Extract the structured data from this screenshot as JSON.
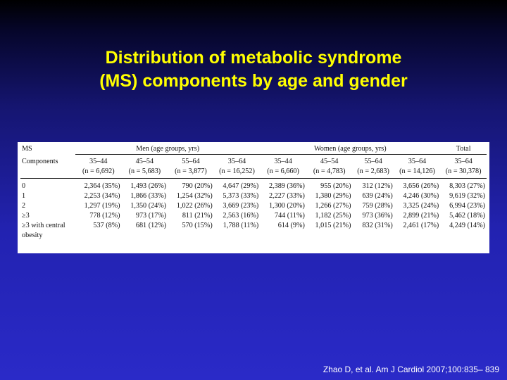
{
  "slide": {
    "title_line1": "Distribution of metabolic syndrome",
    "title_line2": "(MS) components by age and gender",
    "citation": "Zhao D, et al. Am J Cardiol 2007;100:835– 839",
    "colors": {
      "title": "#ffff00",
      "citation": "#ffffff",
      "background_top": "#000000",
      "background_bottom": "#2a2ac8"
    }
  },
  "table": {
    "header_label_line1": "MS",
    "header_label_line2": "Components",
    "groups": {
      "men": "Men (age groups, yrs)",
      "women": "Women (age groups, yrs)",
      "total": "Total"
    },
    "columns": [
      {
        "age": "35–44",
        "n": "(n = 6,692)"
      },
      {
        "age": "45–54",
        "n": "(n = 5,683)"
      },
      {
        "age": "55–64",
        "n": "(n = 3,877)"
      },
      {
        "age": "35–64",
        "n": "(n = 16,252)"
      },
      {
        "age": "35–44",
        "n": "(n = 6,660)"
      },
      {
        "age": "45–54",
        "n": "(n = 4,783)"
      },
      {
        "age": "55–64",
        "n": "(n = 2,683)"
      },
      {
        "age": "35–64",
        "n": "(n = 14,126)"
      },
      {
        "age": "35–64",
        "n": "(n = 30,378)"
      }
    ],
    "rows": [
      {
        "label": "0",
        "cells": [
          "2,364 (35%)",
          "1,493 (26%)",
          "790 (20%)",
          "4,647 (29%)",
          "2,389 (36%)",
          "955 (20%)",
          "312 (12%)",
          "3,656 (26%)",
          "8,303 (27%)"
        ]
      },
      {
        "label": "1",
        "cells": [
          "2,253 (34%)",
          "1,866 (33%)",
          "1,254 (32%)",
          "5,373 (33%)",
          "2,227 (33%)",
          "1,380 (29%)",
          "639 (24%)",
          "4,246 (30%)",
          "9,619 (32%)"
        ]
      },
      {
        "label": "2",
        "cells": [
          "1,297 (19%)",
          "1,350 (24%)",
          "1,022 (26%)",
          "3,669 (23%)",
          "1,300 (20%)",
          "1,266 (27%)",
          "759 (28%)",
          "3,325 (24%)",
          "6,994 (23%)"
        ]
      },
      {
        "label": "≥3",
        "cells": [
          "778 (12%)",
          "973 (17%)",
          "811 (21%)",
          "2,563 (16%)",
          "744 (11%)",
          "1,182 (25%)",
          "973 (36%)",
          "2,899 (21%)",
          "5,462 (18%)"
        ]
      },
      {
        "label": "≥3 with central",
        "cells": [
          "537 (8%)",
          "681 (12%)",
          "570 (15%)",
          "1,788 (11%)",
          "614 (9%)",
          "1,015 (21%)",
          "832 (31%)",
          "2,461 (17%)",
          "4,249 (14%)"
        ]
      },
      {
        "label": "obesity",
        "cells": [
          "",
          "",
          "",
          "",
          "",
          "",
          "",
          "",
          ""
        ]
      }
    ]
  }
}
